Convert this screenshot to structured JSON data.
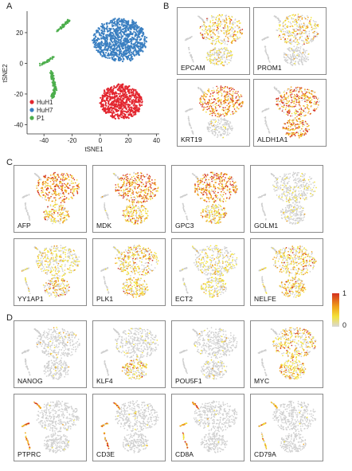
{
  "panels": {
    "a": "A",
    "b": "B",
    "c": "C",
    "d": "D"
  },
  "colors": {
    "huh1": "#e3262f",
    "huh7": "#3a7fc1",
    "p1": "#4cae4c",
    "grey": "#cfcfcf",
    "low": "#f3e23a",
    "mid": "#f0a019",
    "high": "#d3301f"
  },
  "chart_data": {
    "type": "scatter",
    "xlabel": "tSNE1",
    "ylabel": "tSNE2",
    "xticks": [
      -40,
      -20,
      0,
      20,
      40
    ],
    "yticks": [
      -40,
      -20,
      0,
      20
    ],
    "xlim": [
      -52,
      42
    ],
    "ylim": [
      -46,
      34
    ],
    "legend_position": "bottom-left",
    "series": [
      {
        "name": "HuH1",
        "color": "#e3262f"
      },
      {
        "name": "HuH7",
        "color": "#3a7fc1"
      },
      {
        "name": "P1",
        "color": "#4cae4c"
      }
    ]
  },
  "colorbar": {
    "max": "1",
    "min": "0"
  },
  "genes_b": [
    "EPCAM",
    "PROM1",
    "KRT19",
    "ALDH1A1"
  ],
  "genes_c1": [
    "AFP",
    "MDK",
    "GPC3",
    "GOLM1"
  ],
  "genes_c2": [
    "YY1AP1",
    "PLK1",
    "ECT2",
    "NELFE"
  ],
  "genes_d1": [
    "NANOG",
    "KLF4",
    "POU5F1",
    "MYC"
  ],
  "genes_d2": [
    "PTPRC",
    "CD3E",
    "CD8A",
    "CD79A"
  ]
}
